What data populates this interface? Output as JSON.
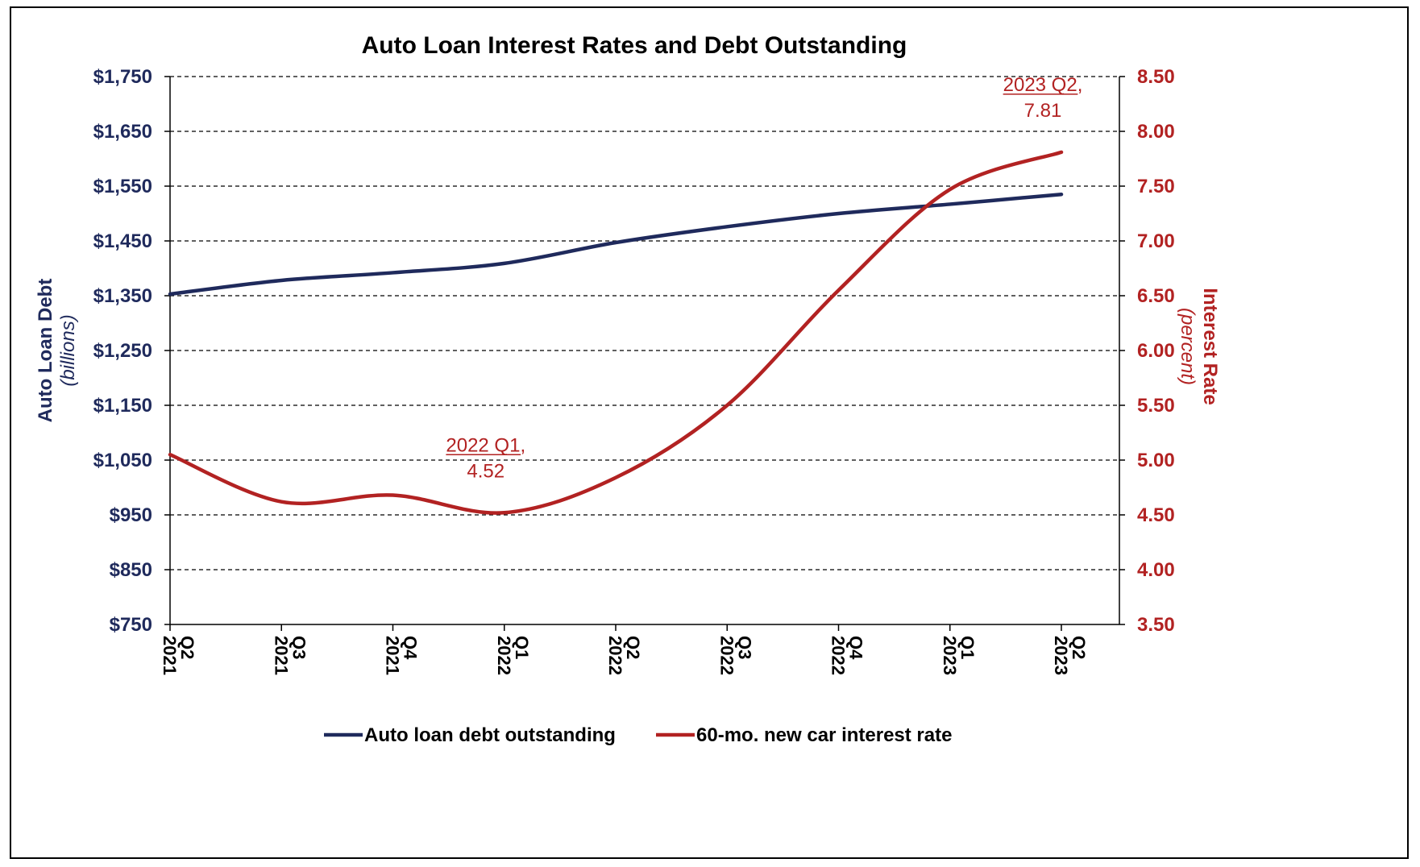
{
  "chart_data": {
    "type": "line",
    "title": "Auto Loan Interest Rates and Debt Outstanding",
    "categories": [
      "2021 Q2",
      "2021 Q3",
      "2021 Q4",
      "2022 Q1",
      "2022 Q2",
      "2022 Q3",
      "2022 Q4",
      "2023 Q1",
      "2023 Q2"
    ],
    "left_axis": {
      "label": "Auto Loan Debt",
      "sublabel": "(billions)",
      "ylim": [
        750,
        1750
      ],
      "ticks": [
        750,
        850,
        950,
        1050,
        1150,
        1250,
        1350,
        1450,
        1550,
        1650,
        1750
      ],
      "tick_labels": [
        "$750",
        "$850",
        "$950",
        "$1,050",
        "$1,150",
        "$1,250",
        "$1,350",
        "$1,450",
        "$1,550",
        "$1,650",
        "$1,750"
      ],
      "color": "#1f2a5c"
    },
    "right_axis": {
      "label": "Interest Rate",
      "sublabel": "(percent)",
      "ylim": [
        3.5,
        8.5
      ],
      "ticks": [
        3.5,
        4.0,
        4.5,
        5.0,
        5.5,
        6.0,
        6.5,
        7.0,
        7.5,
        8.0,
        8.5
      ],
      "tick_labels": [
        "3.50",
        "4.00",
        "4.50",
        "5.00",
        "5.50",
        "6.00",
        "6.50",
        "7.00",
        "7.50",
        "8.00",
        "8.50"
      ],
      "color": "#b22222"
    },
    "series": [
      {
        "name": "Auto loan debt outstanding",
        "axis": "left",
        "color": "#1f2a5c",
        "values": [
          1353,
          1378,
          1392,
          1409,
          1447,
          1476,
          1500,
          1517,
          1535
        ]
      },
      {
        "name": "60-mo. new car interest rate",
        "axis": "right",
        "color": "#b22222",
        "values": [
          5.05,
          4.62,
          4.68,
          4.52,
          4.84,
          5.5,
          6.55,
          7.47,
          7.81
        ]
      }
    ],
    "annotations": [
      {
        "series": 1,
        "index": 3,
        "line1": "2022 Q1,",
        "line2": "4.52"
      },
      {
        "series": 1,
        "index": 8,
        "line1": "2023 Q2,",
        "line2": "7.81"
      }
    ],
    "grid": true,
    "grid_style": "dashed",
    "legend": "bottom"
  }
}
